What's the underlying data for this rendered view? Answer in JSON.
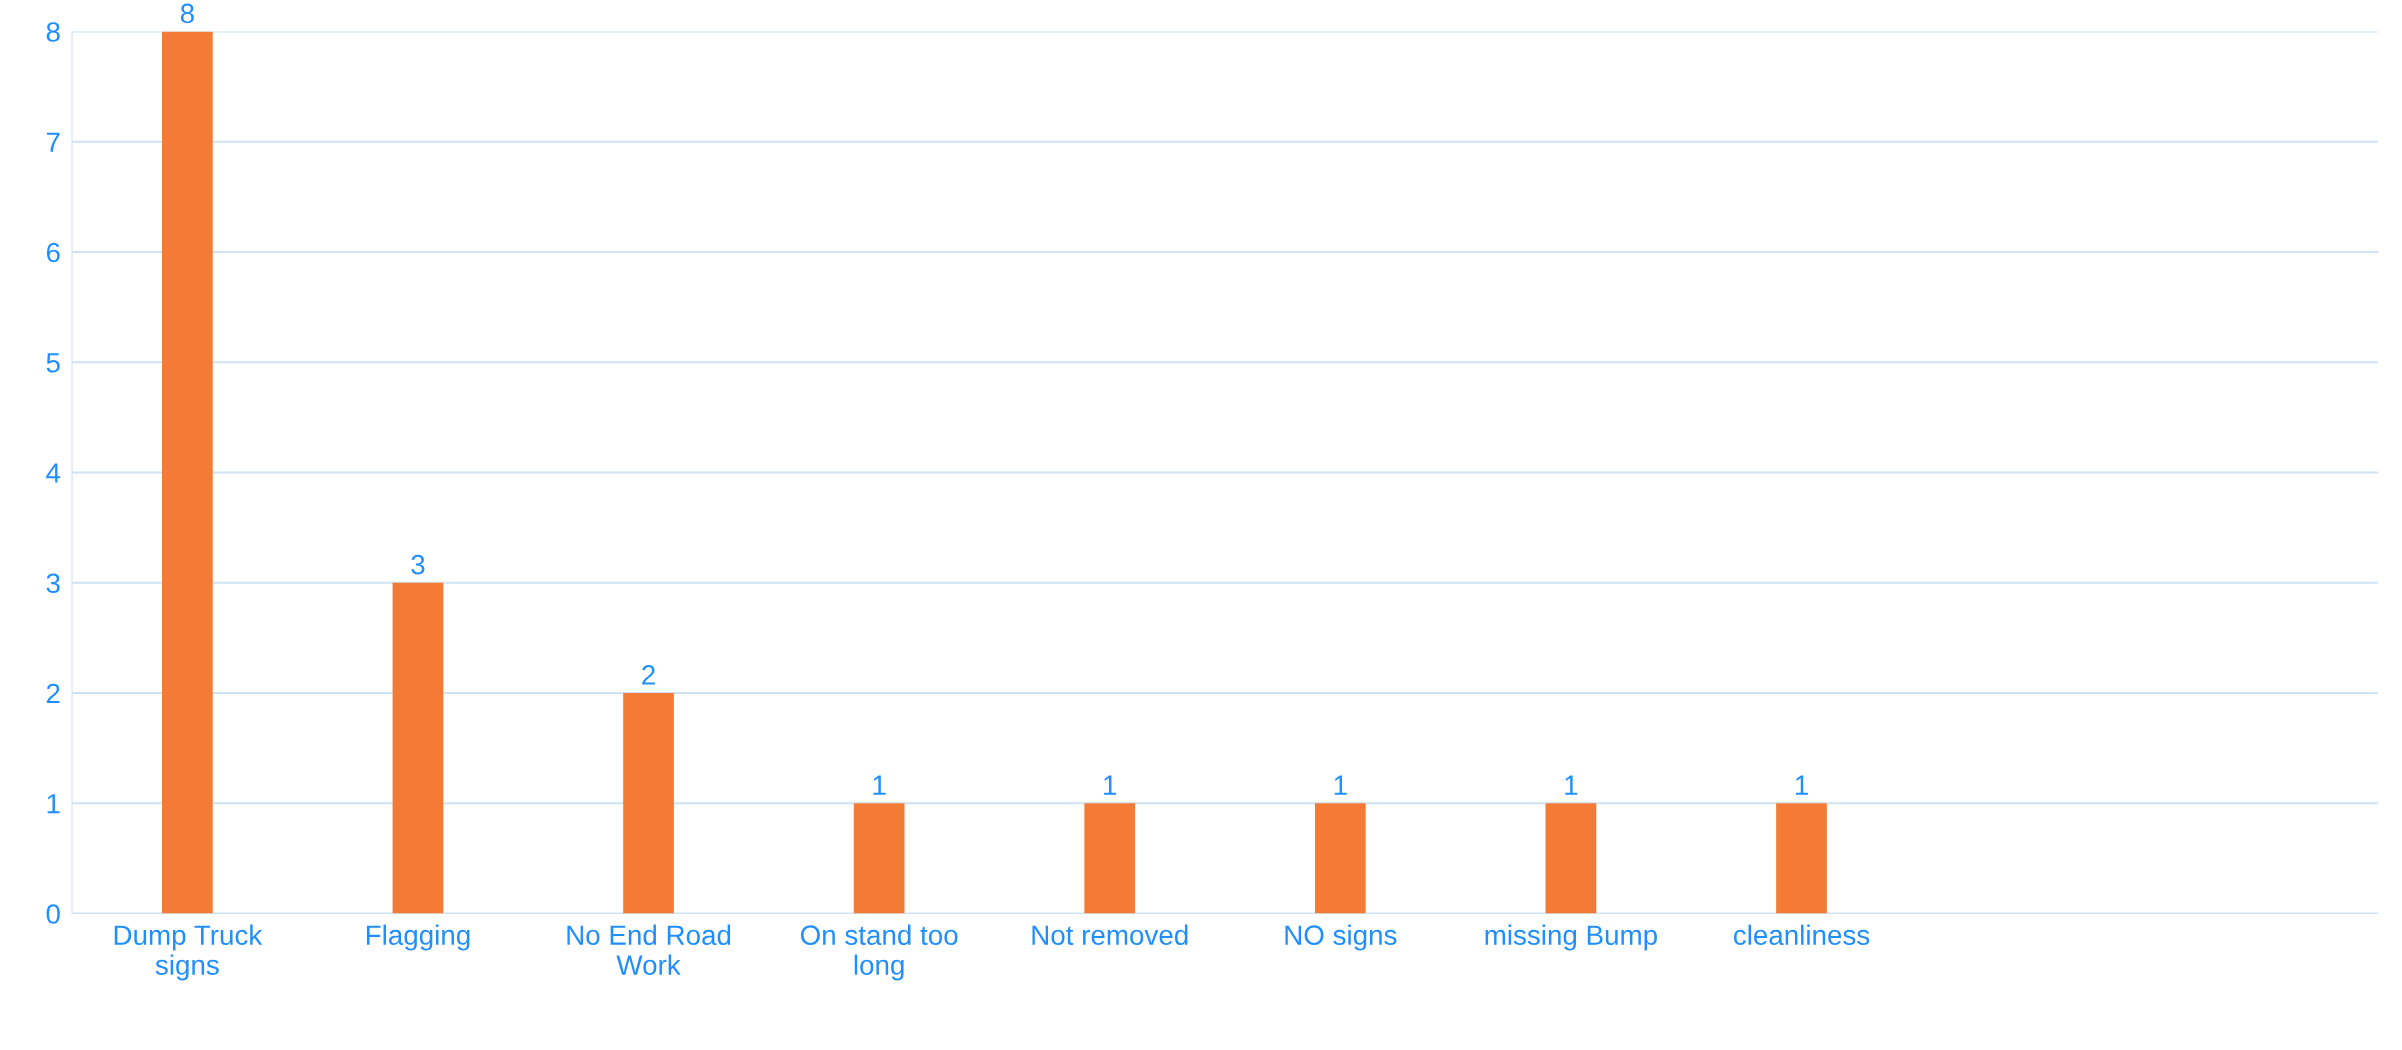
{
  "chart_data": {
    "type": "bar",
    "categories": [
      "Dump Truck signs",
      "Flagging",
      "No End Road Work",
      "On stand too long",
      "Not removed",
      "NO signs",
      "missing Bump",
      "cleanliness",
      null,
      null
    ],
    "values": [
      8,
      3,
      2,
      1,
      1,
      1,
      1,
      1,
      null,
      null
    ],
    "color": "#f47b36",
    "ylim": [
      0,
      8
    ],
    "yticks": [
      0,
      1,
      2,
      3,
      4,
      5,
      6,
      7,
      8
    ],
    "grid": "y",
    "data_labels": true,
    "legend": false
  }
}
